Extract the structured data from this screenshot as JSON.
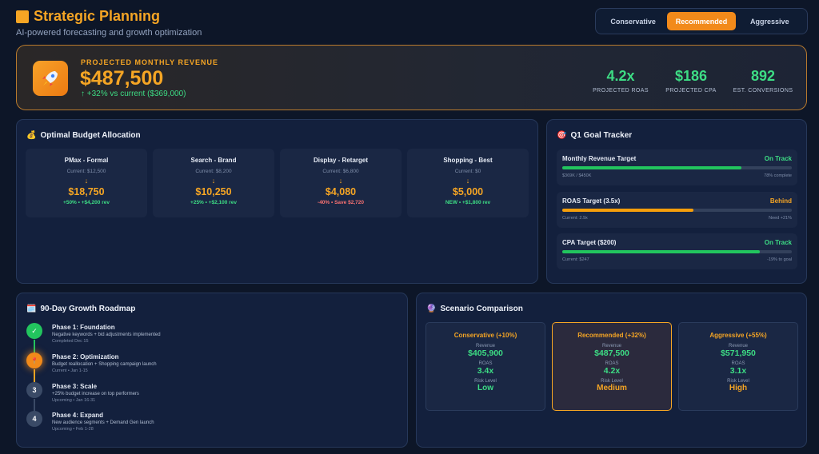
{
  "header": {
    "title": "Strategic Planning",
    "subtitle": "AI-powered forecasting and growth optimization",
    "scenarios": [
      "Conservative",
      "Recommended",
      "Aggressive"
    ],
    "active_scenario": "Recommended"
  },
  "hero": {
    "label": "PROJECTED MONTHLY REVENUE",
    "value": "$487,500",
    "delta": "↑ +32% vs current ($369,000)",
    "kpis": [
      {
        "value": "4.2x",
        "label": "PROJECTED ROAS"
      },
      {
        "value": "$186",
        "label": "PROJECTED CPA"
      },
      {
        "value": "892",
        "label": "EST. CONVERSIONS"
      }
    ]
  },
  "budget": {
    "title": "Optimal Budget Allocation",
    "cards": [
      {
        "name": "PMax - Formal",
        "current": "Current: $12,500",
        "value": "$18,750",
        "delta": "+50% • +$4,200 rev",
        "positive": true
      },
      {
        "name": "Search - Brand",
        "current": "Current: $8,200",
        "value": "$10,250",
        "delta": "+25% • +$2,100 rev",
        "positive": true
      },
      {
        "name": "Display - Retarget",
        "current": "Current: $6,800",
        "value": "$4,080",
        "delta": "-40% • Save $2,720",
        "positive": false
      },
      {
        "name": "Shopping - Best",
        "current": "Current: $0",
        "value": "$5,000",
        "delta": "NEW • +$1,800 rev",
        "positive": true
      }
    ]
  },
  "goals": {
    "title": "Q1 Goal Tracker",
    "items": [
      {
        "title": "Monthly Revenue Target",
        "status": "On Track",
        "progress": 0.78,
        "left": "$369K / $450K",
        "right": "78% complete",
        "color": "#22c55e"
      },
      {
        "title": "ROAS Target (3.5x)",
        "status": "Behind",
        "progress": 0.57,
        "left": "Current: 2.9x",
        "right": "Need +21%",
        "color": "#f59e0b"
      },
      {
        "title": "CPA Target ($200)",
        "status": "On Track",
        "progress": 0.86,
        "left": "Current: $247",
        "right": "-19% to goal",
        "color": "#22c55e"
      }
    ]
  },
  "roadmap": {
    "title": "90-Day Growth Roadmap",
    "phases": [
      {
        "marker": "✓",
        "title": "Phase 1: Foundation",
        "desc": "Negative keywords + bid adjustments implemented",
        "status": "Completed Dec 15",
        "state": "done"
      },
      {
        "marker": "📍",
        "title": "Phase 2: Optimization",
        "desc": "Budget reallocation + Shopping campaign launch",
        "status": "Current • Jan 1-15",
        "state": "current"
      },
      {
        "marker": "3",
        "title": "Phase 3: Scale",
        "desc": "+25% budget increase on top performers",
        "status": "Upcoming • Jan 16-31",
        "state": "upcoming"
      },
      {
        "marker": "4",
        "title": "Phase 4: Expand",
        "desc": "New audience segments + Demand Gen launch",
        "status": "Upcoming • Feb 1-28",
        "state": "upcoming"
      }
    ]
  },
  "scenario_comparison": {
    "title": "Scenario Comparison",
    "labels": {
      "revenue": "Revenue",
      "roas": "ROAS",
      "risk": "Risk Level"
    },
    "scenarios": [
      {
        "title": "Conservative (+10%)",
        "revenue": "$405,900",
        "roas": "3.4x",
        "risk": "Low",
        "risk_color": "#3ddc84"
      },
      {
        "title": "Recommended (+32%)",
        "revenue": "$487,500",
        "roas": "4.2x",
        "risk": "Medium",
        "risk_color": "#f5a524"
      },
      {
        "title": "Aggressive (+55%)",
        "revenue": "$571,950",
        "roas": "3.1x",
        "risk": "High",
        "risk_color": "#f5a524"
      }
    ]
  },
  "icons": {
    "rocket": "rocket-icon",
    "money_bag": "money-bag-icon",
    "target": "target-icon",
    "calendar": "calendar-icon",
    "crystal_ball": "crystal-ball-icon"
  },
  "colors": {
    "accent": "#f5a524",
    "positive": "#3ddc84",
    "negative": "#f87171",
    "background": "#0d1628",
    "panel": "#13203d"
  }
}
